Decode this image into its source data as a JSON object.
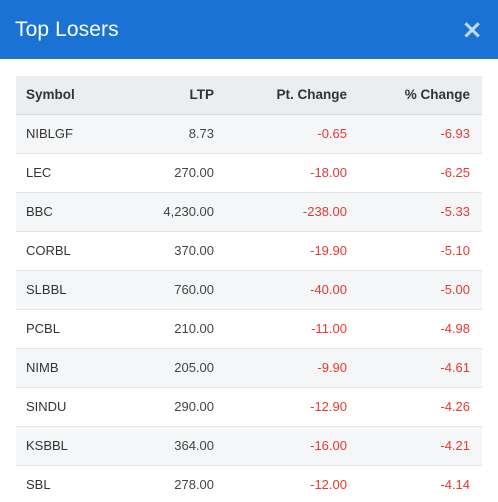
{
  "modal": {
    "title": "Top Losers",
    "close_label": "×"
  },
  "table": {
    "headers": {
      "symbol": "Symbol",
      "ltp": "LTP",
      "pt_change": "Pt. Change",
      "pct_change": "% Change"
    },
    "rows": [
      {
        "symbol": "NIBLGF",
        "ltp": "8.73",
        "pt_change": "-0.65",
        "pct_change": "-6.93"
      },
      {
        "symbol": "LEC",
        "ltp": "270.00",
        "pt_change": "-18.00",
        "pct_change": "-6.25"
      },
      {
        "symbol": "BBC",
        "ltp": "4,230.00",
        "pt_change": "-238.00",
        "pct_change": "-5.33"
      },
      {
        "symbol": "CORBL",
        "ltp": "370.00",
        "pt_change": "-19.90",
        "pct_change": "-5.10"
      },
      {
        "symbol": "SLBBL",
        "ltp": "760.00",
        "pt_change": "-40.00",
        "pct_change": "-5.00"
      },
      {
        "symbol": "PCBL",
        "ltp": "210.00",
        "pt_change": "-11.00",
        "pct_change": "-4.98"
      },
      {
        "symbol": "NIMB",
        "ltp": "205.00",
        "pt_change": "-9.90",
        "pct_change": "-4.61"
      },
      {
        "symbol": "SINDU",
        "ltp": "290.00",
        "pt_change": "-12.90",
        "pct_change": "-4.26"
      },
      {
        "symbol": "KSBBL",
        "ltp": "364.00",
        "pt_change": "-16.00",
        "pct_change": "-4.21"
      },
      {
        "symbol": "SBL",
        "ltp": "278.00",
        "pt_change": "-12.00",
        "pct_change": "-4.14"
      }
    ]
  },
  "colors": {
    "header_bg": "#1a73d4",
    "negative": "#e53935"
  }
}
